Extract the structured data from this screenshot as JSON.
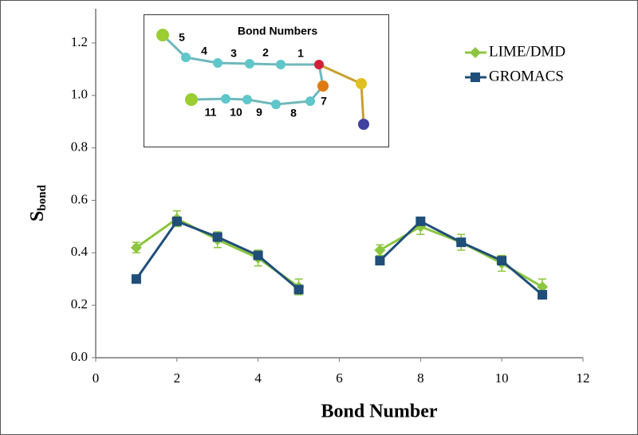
{
  "chart_data": {
    "type": "line",
    "xlabel": "Bond Number",
    "ylabel": "S",
    "ylabel_subscript": "bond",
    "x": [
      1,
      2,
      3,
      4,
      5,
      6,
      7,
      8,
      9,
      10,
      11
    ],
    "series": [
      {
        "name": "LIME/DMD",
        "color": "#8cc63e",
        "marker": "diamond",
        "values": [
          0.42,
          0.53,
          0.45,
          0.38,
          0.27,
          null,
          0.41,
          0.5,
          0.44,
          0.36,
          0.27
        ],
        "errors": [
          0.02,
          0.03,
          0.03,
          0.03,
          0.03,
          null,
          0.02,
          0.03,
          0.03,
          0.03,
          0.03
        ]
      },
      {
        "name": "GROMACS",
        "color": "#1f4e79",
        "marker": "square",
        "values": [
          0.3,
          0.52,
          0.46,
          0.39,
          0.26,
          null,
          0.37,
          0.52,
          0.44,
          0.37,
          0.24
        ],
        "errors": [
          0.01,
          0.01,
          0.01,
          0.01,
          0.01,
          null,
          0.01,
          0.01,
          0.01,
          0.01,
          0.01
        ]
      }
    ],
    "xlim": [
      0,
      12
    ],
    "xticks": [
      0,
      2,
      4,
      6,
      8,
      10,
      12
    ],
    "ylim": [
      0,
      1.3
    ],
    "yticks": [
      {
        "value": 0,
        "label": "0.0"
      },
      0.2,
      0.4,
      0.6,
      0.8,
      {
        "value": 1,
        "label": "1.0"
      },
      1.2
    ],
    "legend": "upper-right",
    "inset": {
      "title": "Bond Numbers",
      "bond_labels": [
        "1",
        "2",
        "3",
        "4",
        "5",
        "7",
        "8",
        "9",
        "10",
        "11"
      ]
    }
  }
}
